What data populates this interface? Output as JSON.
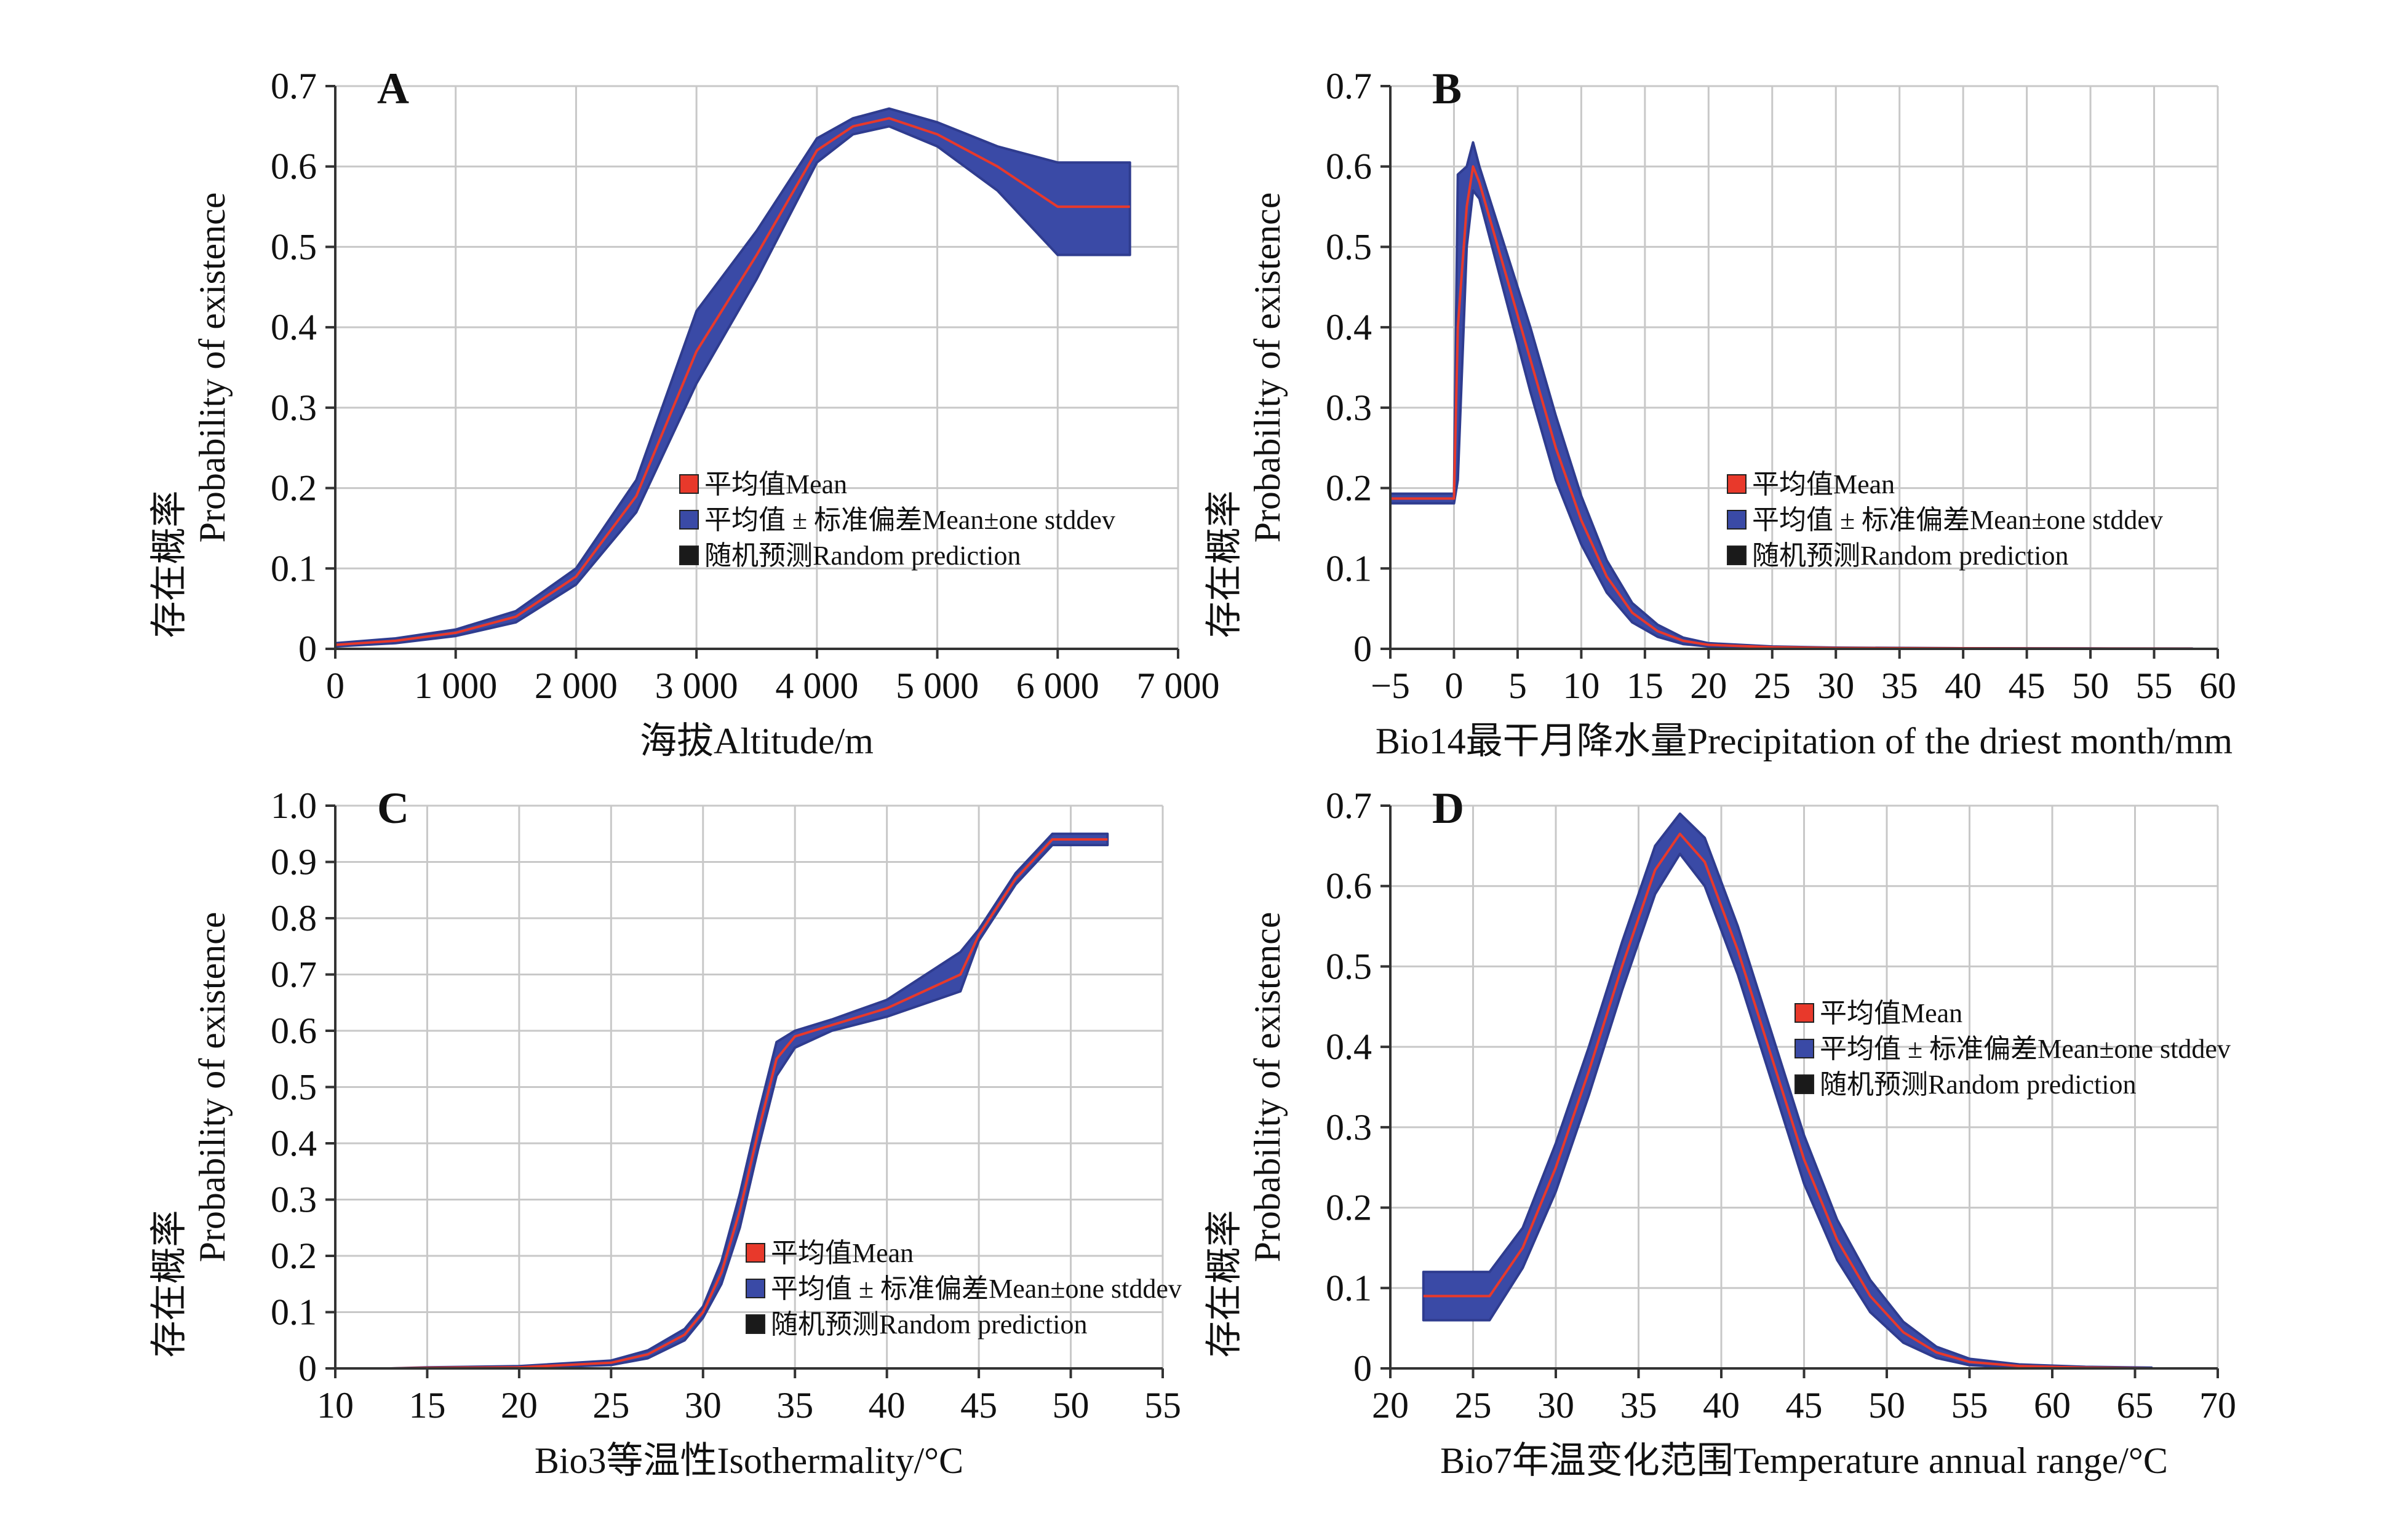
{
  "chart_data": [
    {
      "type": "area",
      "panel_label": "A",
      "xlabel": "海拔Altitude/m",
      "ylabel_zh": "存在概率",
      "ylabel_en": "Probability of existence",
      "xlim": [
        0,
        7000
      ],
      "ylim": [
        0,
        0.7
      ],
      "xticks": [
        0,
        1000,
        2000,
        3000,
        4000,
        5000,
        6000,
        7000
      ],
      "xtick_labels": [
        "0",
        "1 000",
        "2 000",
        "3 000",
        "4 000",
        "5 000",
        "6 000",
        "7 000"
      ],
      "yticks": [
        0,
        0.1,
        0.2,
        0.3,
        0.4,
        0.5,
        0.6,
        0.7
      ],
      "ytick_labels": [
        "0",
        "0.1",
        "0.2",
        "0.3",
        "0.4",
        "0.5",
        "0.6",
        "0.7"
      ],
      "grid": true,
      "legend_position": "center-right",
      "legend": [
        "平均值Mean",
        "平均值 ± 标准偏差Mean±one stddev",
        "随机预测Random prediction"
      ],
      "x": [
        0,
        500,
        1000,
        1500,
        2000,
        2500,
        3000,
        3500,
        4000,
        4300,
        4600,
        5000,
        5500,
        6000,
        6600
      ],
      "mean": [
        0.005,
        0.01,
        0.02,
        0.04,
        0.09,
        0.19,
        0.37,
        0.49,
        0.62,
        0.65,
        0.66,
        0.64,
        0.6,
        0.55,
        0.55
      ],
      "upper": [
        0.007,
        0.013,
        0.024,
        0.047,
        0.1,
        0.21,
        0.42,
        0.52,
        0.635,
        0.66,
        0.672,
        0.655,
        0.625,
        0.605,
        0.605
      ],
      "lower": [
        0.003,
        0.007,
        0.016,
        0.033,
        0.08,
        0.17,
        0.33,
        0.46,
        0.605,
        0.64,
        0.65,
        0.625,
        0.57,
        0.49,
        0.49
      ]
    },
    {
      "type": "area",
      "panel_label": "B",
      "xlabel": "Bio14最干月降水量Precipitation of the driest month/mm",
      "ylabel_zh": "存在概率",
      "ylabel_en": "Probability of existence",
      "xlim": [
        -5,
        60
      ],
      "ylim": [
        0,
        0.7
      ],
      "xticks": [
        -5,
        0,
        5,
        10,
        15,
        20,
        25,
        30,
        35,
        40,
        45,
        50,
        55,
        60
      ],
      "xtick_labels": [
        "−5",
        "0",
        "5",
        "10",
        "15",
        "20",
        "25",
        "30",
        "35",
        "40",
        "45",
        "50",
        "55",
        "60"
      ],
      "yticks": [
        0,
        0.1,
        0.2,
        0.3,
        0.4,
        0.5,
        0.6,
        0.7
      ],
      "ytick_labels": [
        "0",
        "0.1",
        "0.2",
        "0.3",
        "0.4",
        "0.5",
        "0.6",
        "0.7"
      ],
      "grid": true,
      "legend_position": "center-right",
      "legend": [
        "平均值Mean",
        "平均值 ± 标准偏差Mean±one stddev",
        "随机预测Random prediction"
      ],
      "x": [
        -5,
        0,
        0.3,
        1,
        1.5,
        2,
        4,
        6,
        8,
        10,
        12,
        14,
        16,
        18,
        20,
        25,
        30,
        40,
        50,
        58
      ],
      "mean": [
        0.187,
        0.187,
        0.4,
        0.55,
        0.6,
        0.58,
        0.47,
        0.36,
        0.25,
        0.16,
        0.09,
        0.045,
        0.022,
        0.01,
        0.005,
        0.002,
        0.001,
        0.0005,
        0.0003,
        0.0002
      ],
      "upper": [
        0.193,
        0.193,
        0.59,
        0.6,
        0.63,
        0.6,
        0.5,
        0.4,
        0.29,
        0.19,
        0.11,
        0.057,
        0.03,
        0.014,
        0.007,
        0.003,
        0.0015,
        0.0008,
        0.0005,
        0.0004
      ],
      "lower": [
        0.181,
        0.181,
        0.21,
        0.5,
        0.57,
        0.56,
        0.44,
        0.32,
        0.21,
        0.13,
        0.07,
        0.033,
        0.015,
        0.006,
        0.003,
        0.001,
        0.0005,
        0.0002,
        0.0001,
        0.0001
      ]
    },
    {
      "type": "area",
      "panel_label": "C",
      "xlabel": "Bio3等温性Isothermality/°C",
      "ylabel_zh": "存在概率",
      "ylabel_en": "Probability of existence",
      "xlim": [
        10,
        55
      ],
      "ylim": [
        0,
        1.0
      ],
      "xticks": [
        10,
        15,
        20,
        25,
        30,
        35,
        40,
        45,
        50,
        55
      ],
      "xtick_labels": [
        "10",
        "15",
        "20",
        "25",
        "30",
        "35",
        "40",
        "45",
        "50",
        "55"
      ],
      "yticks": [
        0,
        0.1,
        0.2,
        0.3,
        0.4,
        0.5,
        0.6,
        0.7,
        0.8,
        0.9,
        1.0
      ],
      "ytick_labels": [
        "0",
        "0.1",
        "0.2",
        "0.3",
        "0.4",
        "0.5",
        "0.6",
        "0.7",
        "0.8",
        "0.9",
        "1.0"
      ],
      "grid": true,
      "legend_position": "bottom-center",
      "legend": [
        "平均值Mean",
        "平均值 ± 标准偏差Mean±one stddev",
        "随机预测Random prediction"
      ],
      "x": [
        13,
        15,
        20,
        25,
        27,
        29,
        30,
        31,
        32,
        33,
        34,
        35,
        37,
        40,
        44,
        45,
        47,
        49,
        52
      ],
      "mean": [
        0.0,
        0.001,
        0.002,
        0.01,
        0.025,
        0.06,
        0.1,
        0.17,
        0.28,
        0.42,
        0.55,
        0.59,
        0.61,
        0.64,
        0.7,
        0.77,
        0.87,
        0.94,
        0.94
      ],
      "upper": [
        0.0,
        0.002,
        0.004,
        0.014,
        0.032,
        0.07,
        0.11,
        0.19,
        0.31,
        0.45,
        0.58,
        0.6,
        0.62,
        0.655,
        0.74,
        0.78,
        0.88,
        0.95,
        0.95
      ],
      "lower": [
        0.0,
        0.0,
        0.001,
        0.006,
        0.018,
        0.05,
        0.09,
        0.15,
        0.25,
        0.39,
        0.52,
        0.57,
        0.6,
        0.625,
        0.67,
        0.76,
        0.86,
        0.93,
        0.93
      ]
    },
    {
      "type": "area",
      "panel_label": "D",
      "xlabel": "Bio7年温变化范围Temperature annual range/°C",
      "ylabel_zh": "存在概率",
      "ylabel_en": "Probability of existence",
      "xlim": [
        20,
        70
      ],
      "ylim": [
        0,
        0.7
      ],
      "xticks": [
        20,
        25,
        30,
        35,
        40,
        45,
        50,
        55,
        60,
        65,
        70
      ],
      "xtick_labels": [
        "20",
        "25",
        "30",
        "35",
        "40",
        "45",
        "50",
        "55",
        "60",
        "65",
        "70"
      ],
      "yticks": [
        0,
        0.1,
        0.2,
        0.3,
        0.4,
        0.5,
        0.6,
        0.7
      ],
      "ytick_labels": [
        "0",
        "0.1",
        "0.2",
        "0.3",
        "0.4",
        "0.5",
        "0.6",
        "0.7"
      ],
      "grid": true,
      "legend_position": "center-right",
      "legend": [
        "平均值Mean",
        "平均值 ± 标准偏差Mean±one stddev",
        "随机预测Random prediction"
      ],
      "x": [
        22,
        26,
        28,
        30,
        32,
        34,
        36,
        37.5,
        39,
        41,
        43,
        45,
        47,
        49,
        51,
        53,
        55,
        58,
        62,
        66
      ],
      "mean": [
        0.09,
        0.09,
        0.15,
        0.25,
        0.37,
        0.5,
        0.62,
        0.665,
        0.63,
        0.52,
        0.39,
        0.26,
        0.16,
        0.09,
        0.045,
        0.02,
        0.008,
        0.003,
        0.001,
        0.0
      ],
      "upper": [
        0.12,
        0.12,
        0.175,
        0.28,
        0.4,
        0.53,
        0.65,
        0.69,
        0.66,
        0.55,
        0.42,
        0.29,
        0.185,
        0.11,
        0.058,
        0.027,
        0.012,
        0.005,
        0.002,
        0.001
      ],
      "lower": [
        0.06,
        0.06,
        0.125,
        0.22,
        0.34,
        0.47,
        0.59,
        0.64,
        0.6,
        0.49,
        0.36,
        0.23,
        0.135,
        0.07,
        0.032,
        0.013,
        0.004,
        0.001,
        0.0,
        0.0
      ]
    }
  ],
  "colors": {
    "mean_line": "#e8392b",
    "band": "#3a4aa6",
    "band_edge": "#2f3c8f",
    "random_prediction": "#1a1a1a",
    "grid": "#c8c8c8",
    "axis": "#333333"
  }
}
